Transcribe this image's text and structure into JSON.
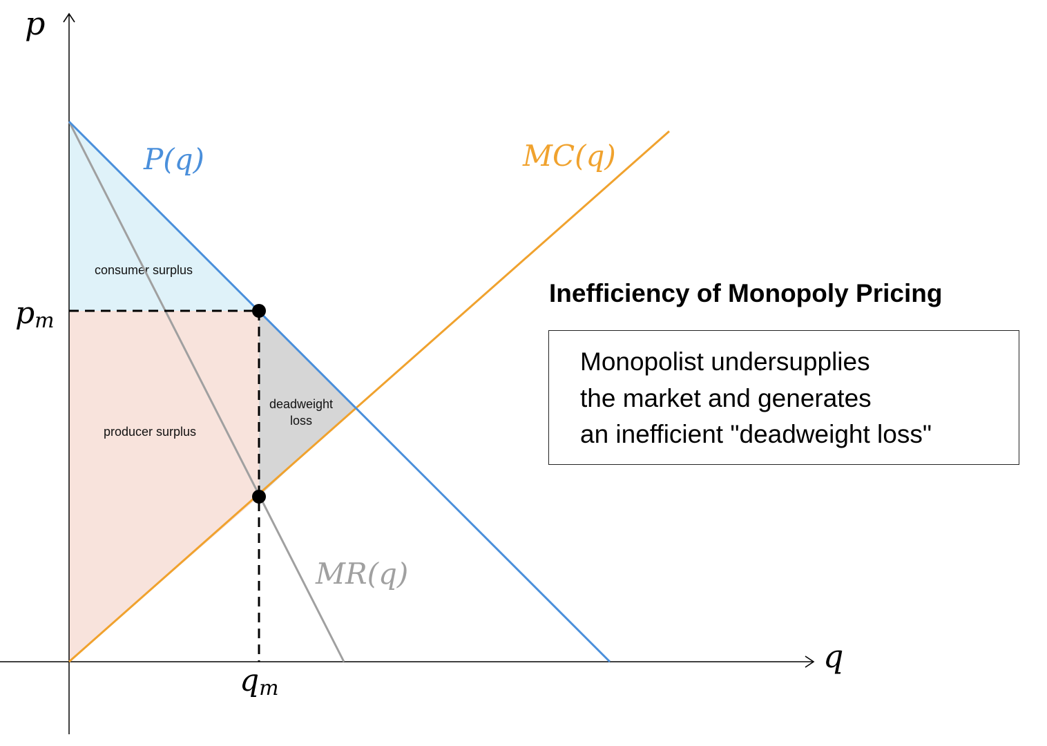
{
  "axes": {
    "y_label": "p",
    "x_label": "q"
  },
  "curves": {
    "demand": {
      "label": "P(q)",
      "color": "#4a8fdb"
    },
    "marginal_cost": {
      "label": "MC(q)",
      "color": "#f0a22e"
    },
    "marginal_revenue": {
      "label": "MR(q)",
      "color": "#a0a0a0"
    }
  },
  "ticks": {
    "price": "p",
    "price_sub": "m",
    "quantity": "q",
    "quantity_sub": "m"
  },
  "regions": {
    "consumer_surplus": {
      "label": "consumer surplus",
      "color": "#dff2f9"
    },
    "producer_surplus": {
      "label": "producer surplus",
      "color": "#f8e3dc"
    },
    "deadweight_loss": {
      "label_line1": "deadweight",
      "label_line2": "loss",
      "color": "#d6d6d6"
    }
  },
  "title": "Inefficiency of Monopoly Pricing",
  "note": {
    "lines": [
      "Monopolist undersupplies",
      "the market and generates",
      "an inefficient \"deadweight loss\""
    ]
  }
}
